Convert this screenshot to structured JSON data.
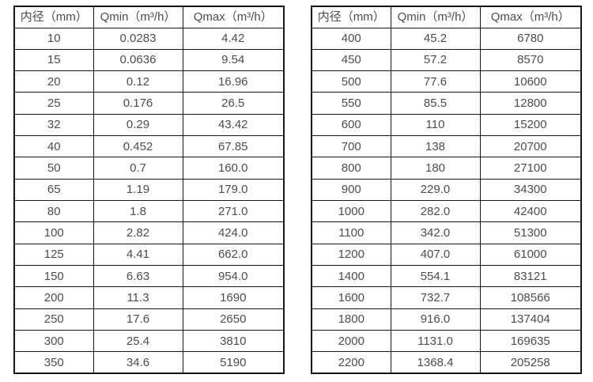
{
  "page": {
    "background": "#ffffff",
    "text_color": "#4d4d4d",
    "border_color": "#161616"
  },
  "tables": [
    {
      "name": "diameter-flow-table-small",
      "headers": [
        "内径（mm）",
        "Qmin（m³/h）",
        "Qmax（m³/h）"
      ],
      "rows": [
        [
          "10",
          "0.0283",
          "4.42"
        ],
        [
          "15",
          "0.0636",
          "9.54"
        ],
        [
          "20",
          "0.12",
          "16.96"
        ],
        [
          "25",
          "0.176",
          "26.5"
        ],
        [
          "32",
          "0.29",
          "43.42"
        ],
        [
          "40",
          "0.452",
          "67.85"
        ],
        [
          "50",
          "0.7",
          "160.0"
        ],
        [
          "65",
          "1.19",
          "179.0"
        ],
        [
          "80",
          "1.8",
          "271.0"
        ],
        [
          "100",
          "2.82",
          "424.0"
        ],
        [
          "125",
          "4.41",
          "662.0"
        ],
        [
          "150",
          "6.63",
          "954.0"
        ],
        [
          "200",
          "11.3",
          "1690"
        ],
        [
          "250",
          "17.6",
          "2650"
        ],
        [
          "300",
          "25.4",
          "3810"
        ],
        [
          "350",
          "34.6",
          "5190"
        ]
      ]
    },
    {
      "name": "diameter-flow-table-large",
      "headers": [
        "内径（mm）",
        "Qmin（m³/h）",
        "Qmax（m³/h）"
      ],
      "rows": [
        [
          "400",
          "45.2",
          "6780"
        ],
        [
          "450",
          "57.2",
          "8570"
        ],
        [
          "500",
          "77.6",
          "10600"
        ],
        [
          "550",
          "85.5",
          "12800"
        ],
        [
          "600",
          "110",
          "15200"
        ],
        [
          "700",
          "138",
          "20700"
        ],
        [
          "800",
          "180",
          "27100"
        ],
        [
          "900",
          "229.0",
          "34300"
        ],
        [
          "1000",
          "282.0",
          "42400"
        ],
        [
          "1100",
          "342.0",
          "51300"
        ],
        [
          "1200",
          "407.0",
          "61000"
        ],
        [
          "1400",
          "554.1",
          "83121"
        ],
        [
          "1600",
          "732.7",
          "108566"
        ],
        [
          "1800",
          "916.0",
          "137404"
        ],
        [
          "2000",
          "1131.0",
          "169635"
        ],
        [
          "2200",
          "1368.4",
          "205258"
        ]
      ]
    }
  ]
}
